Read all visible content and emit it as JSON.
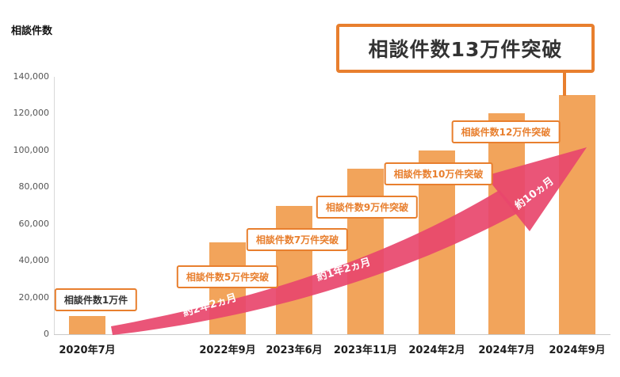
{
  "chart_data": {
    "type": "bar",
    "title": "相談件数13万件突破",
    "ylabel": "相談件数",
    "xlabel": "",
    "categories": [
      "2020年7月",
      "2022年9月",
      "2023年6月",
      "2023年11月",
      "2024年2月",
      "2024年7月",
      "2024年9月"
    ],
    "values": [
      10000,
      50000,
      70000,
      90000,
      100000,
      120000,
      130000
    ],
    "ylim": [
      0,
      140000
    ],
    "ytick_interval": 20000,
    "ytick_labels": [
      "0",
      "20,000",
      "40,000",
      "60,000",
      "80,000",
      "100,000",
      "120,000",
      "140,000"
    ],
    "grid": "off",
    "legend": "none",
    "bar_color": "#f2a45b",
    "accent_orange": "#e87f2e",
    "arrow_color": "#e8476c",
    "annotation_text_black": "#333333",
    "annotations": [
      {
        "text": "相談件数1万件"
      },
      {
        "text": "相談件数5万件突破"
      },
      {
        "text": "相談件数7万件突破"
      },
      {
        "text": "相談件数9万件突破"
      },
      {
        "text": "相談件数10万件突破"
      },
      {
        "text": "相談件数12万件突破"
      }
    ],
    "arrow_labels": [
      "約2年2ヵ月",
      "約1年2ヵ月",
      "約10ヵ月"
    ]
  }
}
